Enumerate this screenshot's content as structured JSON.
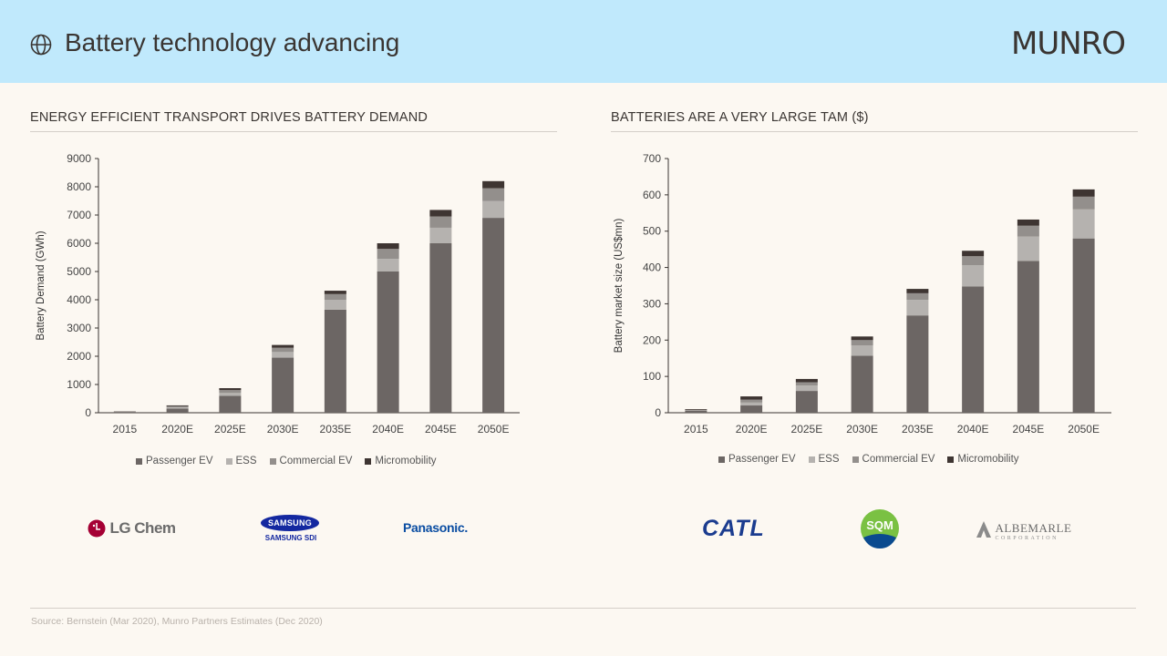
{
  "header": {
    "title": "Battery technology advancing",
    "brand": "MUNRO",
    "icon": "globe-icon"
  },
  "colors": {
    "passenger_ev": "#6c6664",
    "ess": "#b5b2af",
    "commercial_ev": "#938f8c",
    "micromobility": "#3e3532",
    "header_bg": "#c0e9fc",
    "page_bg": "#fcf8f2"
  },
  "left": {
    "section_title": "ENERGY EFFICIENT TRANSPORT DRIVES BATTERY DEMAND",
    "logos": [
      "LG Chem",
      "SAMSUNG",
      "SAMSUNG SDI",
      "Panasonic."
    ]
  },
  "right": {
    "section_title": "BATTERIES ARE A VERY LARGE TAM ($)",
    "logos": [
      "CATL",
      "SQM",
      "ALBEMARLE",
      "CORPORATION"
    ]
  },
  "legend": [
    "Passenger EV",
    "ESS",
    "Commercial EV",
    "Micromobility"
  ],
  "source": "Source: Bernstein (Mar 2020), Munro Partners Estimates (Dec 2020)",
  "chart_data": [
    {
      "type": "bar",
      "stacked": true,
      "title": "",
      "xlabel": "",
      "ylabel": "Battery Demand (GWh)",
      "ylim": [
        0,
        9000
      ],
      "yticks": [
        0,
        1000,
        2000,
        3000,
        4000,
        5000,
        6000,
        7000,
        8000,
        9000
      ],
      "categories": [
        "2015",
        "2020E",
        "2025E",
        "2030E",
        "2035E",
        "2040E",
        "2045E",
        "2050E"
      ],
      "legend_position": "bottom",
      "grid": false,
      "series": [
        {
          "name": "Passenger EV",
          "values": [
            30,
            150,
            600,
            1950,
            3650,
            5000,
            6000,
            6900
          ]
        },
        {
          "name": "ESS",
          "values": [
            5,
            40,
            100,
            200,
            350,
            450,
            550,
            600
          ]
        },
        {
          "name": "Commercial EV",
          "values": [
            5,
            40,
            100,
            150,
            200,
            350,
            400,
            450
          ]
        },
        {
          "name": "Micromobility",
          "values": [
            10,
            30,
            70,
            100,
            120,
            200,
            230,
            250
          ]
        }
      ]
    },
    {
      "type": "bar",
      "stacked": true,
      "title": "",
      "xlabel": "",
      "ylabel": "Battery market size (US$mn)",
      "ylim": [
        0,
        700
      ],
      "yticks": [
        0,
        100,
        200,
        300,
        400,
        500,
        600,
        700
      ],
      "categories": [
        "2015",
        "2020E",
        "2025E",
        "2030E",
        "2035E",
        "2040E",
        "2045E",
        "2050E"
      ],
      "legend_position": "bottom",
      "grid": false,
      "series": [
        {
          "name": "Passenger EV",
          "values": [
            6,
            20,
            60,
            157,
            268,
            348,
            418,
            480
          ]
        },
        {
          "name": "ESS",
          "values": [
            1,
            8,
            15,
            28,
            43,
            58,
            67,
            80
          ]
        },
        {
          "name": "Commercial EV",
          "values": [
            1,
            8,
            9,
            15,
            18,
            25,
            30,
            35
          ]
        },
        {
          "name": "Micromobility",
          "values": [
            2,
            9,
            9,
            10,
            12,
            15,
            17,
            20
          ]
        }
      ]
    }
  ]
}
